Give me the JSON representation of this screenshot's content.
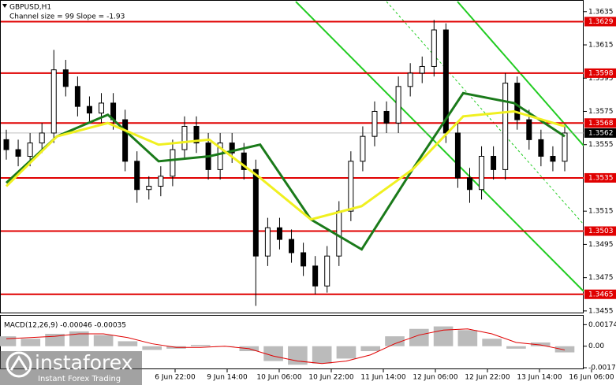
{
  "chart_data": {
    "type": "candlestick",
    "title": "GBPUSD,H1",
    "subtitle": "Channel size = 99 Slope = -1.93",
    "x_labels": [
      "6 Jun 22:00",
      "9 Jun 14:00",
      "10 Jun 06:00",
      "10 Jun 22:00",
      "11 Jun 14:00",
      "12 Jun 06:00",
      "12 Jun 22:00",
      "13 Jun 14:00",
      "16 Jun 06:00"
    ],
    "open": [
      1.3558,
      1.3552,
      1.3548,
      1.3556,
      1.3562,
      1.36,
      1.359,
      1.3578,
      1.3574,
      1.358,
      1.357,
      1.3545,
      1.3528,
      1.353,
      1.3536,
      1.3552,
      1.3566,
      1.3556,
      1.354,
      1.3556,
      1.355,
      1.354,
      1.3488,
      1.3505,
      1.3498,
      1.349,
      1.3482,
      1.347,
      1.3488,
      1.3515,
      1.3545,
      1.356,
      1.3575,
      1.3568,
      1.359,
      1.3598,
      1.3602,
      1.3624,
      1.3562,
      1.3535,
      1.3528,
      1.3548,
      1.354,
      1.3592,
      1.357,
      1.3558,
      1.3548,
      1.3545
    ],
    "high": [
      1.3564,
      1.3558,
      1.3562,
      1.3568,
      1.3612,
      1.3606,
      1.3596,
      1.3584,
      1.3586,
      1.3586,
      1.3576,
      1.3551,
      1.3536,
      1.3542,
      1.3558,
      1.3572,
      1.3572,
      1.3562,
      1.3562,
      1.3562,
      1.3556,
      1.3546,
      1.3511,
      1.3511,
      1.3504,
      1.3496,
      1.3488,
      1.3494,
      1.3521,
      1.3551,
      1.3566,
      1.3581,
      1.3581,
      1.3596,
      1.3604,
      1.3608,
      1.363,
      1.3628,
      1.3568,
      1.3541,
      1.3554,
      1.3554,
      1.3598,
      1.3596,
      1.3576,
      1.3564,
      1.3554,
      1.3566
    ],
    "low": [
      1.3546,
      1.3542,
      1.3542,
      1.355,
      1.3556,
      1.3584,
      1.3572,
      1.3568,
      1.3568,
      1.3564,
      1.3539,
      1.352,
      1.3522,
      1.3524,
      1.353,
      1.3546,
      1.355,
      1.3534,
      1.3534,
      1.3544,
      1.3534,
      1.3458,
      1.3482,
      1.3492,
      1.3484,
      1.3476,
      1.3465,
      1.3466,
      1.3482,
      1.3509,
      1.3539,
      1.3554,
      1.3562,
      1.3562,
      1.3584,
      1.3592,
      1.3596,
      1.3556,
      1.3529,
      1.352,
      1.3522,
      1.3534,
      1.3534,
      1.3564,
      1.3552,
      1.3542,
      1.3539,
      1.3539
    ],
    "close": [
      1.3552,
      1.3548,
      1.3556,
      1.3562,
      1.36,
      1.359,
      1.3578,
      1.3574,
      1.358,
      1.357,
      1.3545,
      1.3528,
      1.353,
      1.3536,
      1.3552,
      1.3566,
      1.3556,
      1.354,
      1.3556,
      1.355,
      1.354,
      1.3488,
      1.3505,
      1.3498,
      1.349,
      1.3482,
      1.347,
      1.3488,
      1.3515,
      1.3545,
      1.356,
      1.3575,
      1.3568,
      1.359,
      1.3598,
      1.3602,
      1.3624,
      1.3562,
      1.3535,
      1.3528,
      1.3548,
      1.354,
      1.3592,
      1.357,
      1.3558,
      1.3548,
      1.3545,
      1.3562
    ],
    "ylim": [
      1.3454,
      1.3642
    ],
    "yticks": [
      1.3635,
      1.3615,
      1.3595,
      1.3575,
      1.3555,
      1.3515,
      1.3495,
      1.3475,
      1.3455
    ],
    "levels": [
      1.3629,
      1.3598,
      1.3568,
      1.3535,
      1.3503,
      1.3465
    ],
    "level_color": "#e00000",
    "current_price": 1.3562,
    "series": [
      {
        "color": "#1a7a1a",
        "values": [
          1.3532,
          1.356,
          1.3573,
          1.3545,
          1.3548,
          1.3555,
          1.351,
          1.3492,
          1.354,
          1.3586,
          1.358,
          1.356
        ]
      },
      {
        "color": "#f0f020",
        "values": [
          1.353,
          1.356,
          1.3568,
          1.3555,
          1.3558,
          1.3535,
          1.351,
          1.3518,
          1.354,
          1.3572,
          1.3575,
          1.3566
        ]
      }
    ],
    "macd": {
      "title": "MACD(12,26,9) -0.00046 -0.00035",
      "histogram": [
        0.0008,
        0.0006,
        0.001,
        0.0012,
        0.0009,
        0.0004,
        -0.0003,
        -0.0002,
        0.0001,
        0.0,
        -0.0004,
        -0.0012,
        -0.0015,
        -0.0014,
        -0.001,
        -0.0004,
        0.0008,
        0.0014,
        0.0016,
        0.0013,
        0.0006,
        -0.0002,
        0.0003,
        -0.0005
      ],
      "signal": [
        0.0006,
        0.0007,
        0.0008,
        0.001,
        0.001,
        0.0007,
        0.0002,
        -0.0001,
        -0.0001,
        0.0,
        -0.0002,
        -0.0008,
        -0.0012,
        -0.0014,
        -0.0012,
        -0.0007,
        0.0002,
        0.0009,
        0.0013,
        0.0014,
        0.001,
        0.0003,
        0.0001,
        -0.0003
      ],
      "ylim": [
        -0.0018,
        0.0024
      ],
      "yticks": [
        0.00174,
        {
          "value": 0,
          "label": "0.00"
        },
        -0.00174
      ],
      "color": "#e00000"
    },
    "logo": {
      "name": "instaforex",
      "tagline": "Instant Forex Trading"
    }
  }
}
